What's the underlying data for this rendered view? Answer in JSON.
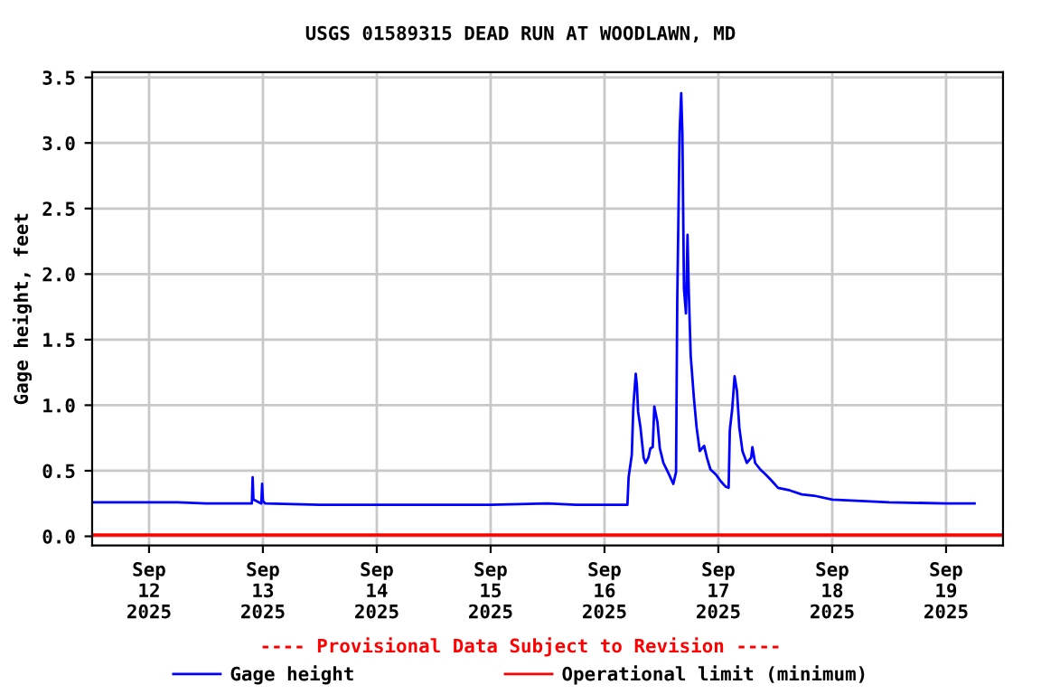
{
  "chart_data": {
    "type": "line",
    "title": "USGS 01589315 DEAD RUN AT WOODLAWN, MD",
    "ylabel": "Gage height, feet",
    "annotations": [
      "---- Provisional Data Subject to Revision ----"
    ],
    "x": [
      "2025-09-11T12:15",
      "2025-09-11T18:00",
      "2025-09-12T06:00",
      "2025-09-12T12:00",
      "2025-09-12T21:40",
      "2025-09-12T21:50",
      "2025-09-12T22:00",
      "2025-09-12T23:40",
      "2025-09-12T23:50",
      "2025-09-13T00:00",
      "2025-09-13T00:30",
      "2025-09-13T12:00",
      "2025-09-14T00:00",
      "2025-09-14T12:00",
      "2025-09-15T00:00",
      "2025-09-15T12:00",
      "2025-09-15T18:00",
      "2025-09-16T04:50",
      "2025-09-16T05:05",
      "2025-09-16T05:45",
      "2025-09-16T06:05",
      "2025-09-16T06:35",
      "2025-09-16T06:50",
      "2025-09-16T07:05",
      "2025-09-16T07:35",
      "2025-09-16T08:15",
      "2025-09-16T08:40",
      "2025-09-16T09:15",
      "2025-09-16T09:40",
      "2025-09-16T10:10",
      "2025-09-16T10:30",
      "2025-09-16T11:10",
      "2025-09-16T11:40",
      "2025-09-16T12:25",
      "2025-09-16T13:30",
      "2025-09-16T14:30",
      "2025-09-16T15:05",
      "2025-09-16T15:20",
      "2025-09-16T15:50",
      "2025-09-16T16:10",
      "2025-09-16T16:25",
      "2025-09-16T16:45",
      "2025-09-16T17:10",
      "2025-09-16T17:30",
      "2025-09-16T17:45",
      "2025-09-16T18:10",
      "2025-09-16T18:50",
      "2025-09-16T19:25",
      "2025-09-16T20:05",
      "2025-09-16T21:00",
      "2025-09-16T21:35",
      "2025-09-16T22:20",
      "2025-09-16T23:30",
      "2025-09-17T00:30",
      "2025-09-17T01:30",
      "2025-09-17T02:10",
      "2025-09-17T02:25",
      "2025-09-17T02:55",
      "2025-09-17T03:25",
      "2025-09-17T03:55",
      "2025-09-17T04:25",
      "2025-09-17T05:05",
      "2025-09-17T06:00",
      "2025-09-17T06:55",
      "2025-09-17T07:10",
      "2025-09-17T07:45",
      "2025-09-17T08:50",
      "2025-09-17T10:00",
      "2025-09-17T11:20",
      "2025-09-17T12:35",
      "2025-09-17T15:05",
      "2025-09-17T17:35",
      "2025-09-17T20:10",
      "2025-09-18T00:00",
      "2025-09-18T06:00",
      "2025-09-18T12:00",
      "2025-09-19T00:00",
      "2025-09-19T06:00"
    ],
    "series": [
      {
        "name": "Gage height",
        "color": "#0000ff",
        "values": [
          0.26,
          0.26,
          0.26,
          0.25,
          0.25,
          0.45,
          0.28,
          0.25,
          0.4,
          0.27,
          0.25,
          0.24,
          0.24,
          0.24,
          0.24,
          0.25,
          0.24,
          0.24,
          0.45,
          0.62,
          0.99,
          1.24,
          1.15,
          0.95,
          0.83,
          0.6,
          0.56,
          0.6,
          0.67,
          0.68,
          0.99,
          0.87,
          0.67,
          0.56,
          0.48,
          0.4,
          0.49,
          1.79,
          3.08,
          3.38,
          3.08,
          1.89,
          1.7,
          2.3,
          1.89,
          1.38,
          1.06,
          0.83,
          0.65,
          0.69,
          0.6,
          0.51,
          0.47,
          0.42,
          0.38,
          0.37,
          0.81,
          0.97,
          1.22,
          1.11,
          0.83,
          0.65,
          0.56,
          0.6,
          0.68,
          0.56,
          0.51,
          0.47,
          0.42,
          0.37,
          0.35,
          0.32,
          0.31,
          0.28,
          0.27,
          0.26,
          0.25,
          0.25
        ]
      }
    ],
    "ref_lines": [
      {
        "axis": "y",
        "value": 0.01,
        "label": "Operational limit (minimum)",
        "color": "#ff0000"
      }
    ],
    "xlim": [
      "2025-09-11T12:00",
      "2025-09-19T12:00"
    ],
    "xticks": [
      {
        "value": "2025-09-12",
        "label": "Sep\n12\n2025"
      },
      {
        "value": "2025-09-13",
        "label": "Sep\n13\n2025"
      },
      {
        "value": "2025-09-14",
        "label": "Sep\n14\n2025"
      },
      {
        "value": "2025-09-15",
        "label": "Sep\n15\n2025"
      },
      {
        "value": "2025-09-16",
        "label": "Sep\n16\n2025"
      },
      {
        "value": "2025-09-17",
        "label": "Sep\n17\n2025"
      },
      {
        "value": "2025-09-18",
        "label": "Sep\n18\n2025"
      },
      {
        "value": "2025-09-19",
        "label": "Sep\n19\n2025"
      }
    ],
    "ylim": [
      -0.07,
      3.54
    ],
    "yticks": [
      {
        "value": 0,
        "label": "0.0"
      },
      0.5,
      {
        "value": 1,
        "label": "1.0"
      },
      1.5,
      {
        "value": 2,
        "label": "2.0"
      },
      2.5,
      {
        "value": 3,
        "label": "3.0"
      },
      3.5
    ],
    "grid": true,
    "legend": "bottom",
    "marker": "none",
    "line_style": "solid"
  }
}
